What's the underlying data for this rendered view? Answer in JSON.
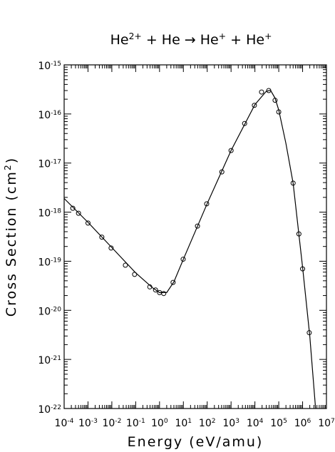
{
  "chart_data": {
    "type": "scatter",
    "title": "He^{2+}  +  He  →  He^{+}  +  He^{+}",
    "x_label": "Energy (eV/amu)",
    "y_label": "Cross Section (cm^{2})",
    "xscale": "log",
    "yscale": "log",
    "xlim": [
      0.0001,
      10000000
    ],
    "ylim": [
      1e-22,
      1e-15
    ],
    "xticks": [
      {
        "value": 0.0001,
        "label": "10^{-4}"
      },
      {
        "value": 0.001,
        "label": "10^{-3}"
      },
      {
        "value": 0.01,
        "label": "10^{-2}"
      },
      {
        "value": 0.1,
        "label": "10^{-1}"
      },
      {
        "value": 1,
        "label": "10^{0}"
      },
      {
        "value": 10,
        "label": "10^{1}"
      },
      {
        "value": 100,
        "label": "10^{2}"
      },
      {
        "value": 1000,
        "label": "10^{3}"
      },
      {
        "value": 10000,
        "label": "10^{4}"
      },
      {
        "value": 100000,
        "label": "10^{5}"
      },
      {
        "value": 1000000,
        "label": "10^{6}"
      },
      {
        "value": 10000000,
        "label": "10^{7}"
      }
    ],
    "yticks": [
      {
        "value": 1e-22,
        "label": "10^{-22}"
      },
      {
        "value": 1e-21,
        "label": "10^{-21}"
      },
      {
        "value": 1e-20,
        "label": "10^{-20}"
      },
      {
        "value": 1e-19,
        "label": "10^{-19}"
      },
      {
        "value": 1e-18,
        "label": "10^{-18}"
      },
      {
        "value": 1e-17,
        "label": "10^{-17}"
      },
      {
        "value": 1e-16,
        "label": "10^{-16}"
      },
      {
        "value": 1e-15,
        "label": "10^{-15}"
      }
    ],
    "minor_ticks": true,
    "series": [
      {
        "kind": "points",
        "color": "#000000",
        "x": [
          0.00023,
          0.0004,
          0.001,
          0.0038,
          0.0093,
          0.037,
          0.09,
          0.39,
          0.68,
          1.0,
          1.5,
          3.7,
          9.8,
          39,
          95,
          410,
          1000,
          3700,
          9500,
          19000,
          38000,
          70000,
          100000,
          400000,
          700000,
          1000000,
          1900000
        ],
        "values": [
          1.2e-18,
          9.5e-19,
          6e-19,
          3.1e-19,
          1.86e-19,
          8.3e-20,
          5.4e-20,
          3e-20,
          2.6e-20,
          2.3e-20,
          2.2e-20,
          3.7e-20,
          1.1e-19,
          5.2e-19,
          1.48e-18,
          6.6e-18,
          1.8e-17,
          6.4e-17,
          1.5e-16,
          2.8e-16,
          3e-16,
          1.9e-16,
          1.1e-16,
          3.9e-18,
          3.6e-19,
          7e-20,
          3.5e-21
        ]
      },
      {
        "kind": "line",
        "color": "#000000",
        "x": [
          0.0001,
          0.001,
          0.01,
          0.1,
          0.5,
          1,
          2,
          4,
          10,
          100,
          1000,
          10000,
          30000,
          45000,
          70000,
          100000,
          200000,
          400000,
          1000000,
          2000000,
          3500000
        ],
        "values": [
          1.9e-18,
          6.2e-19,
          1.9e-19,
          5.8e-20,
          2.9e-20,
          2.3e-20,
          2.3e-20,
          3.8e-20,
          1.1e-19,
          1.5e-18,
          1.8e-17,
          1.55e-16,
          2.9e-16,
          3.05e-16,
          2.1e-16,
          1.2e-16,
          2.5e-17,
          3.9e-18,
          7.5e-20,
          3e-21,
          1e-22
        ]
      }
    ]
  }
}
